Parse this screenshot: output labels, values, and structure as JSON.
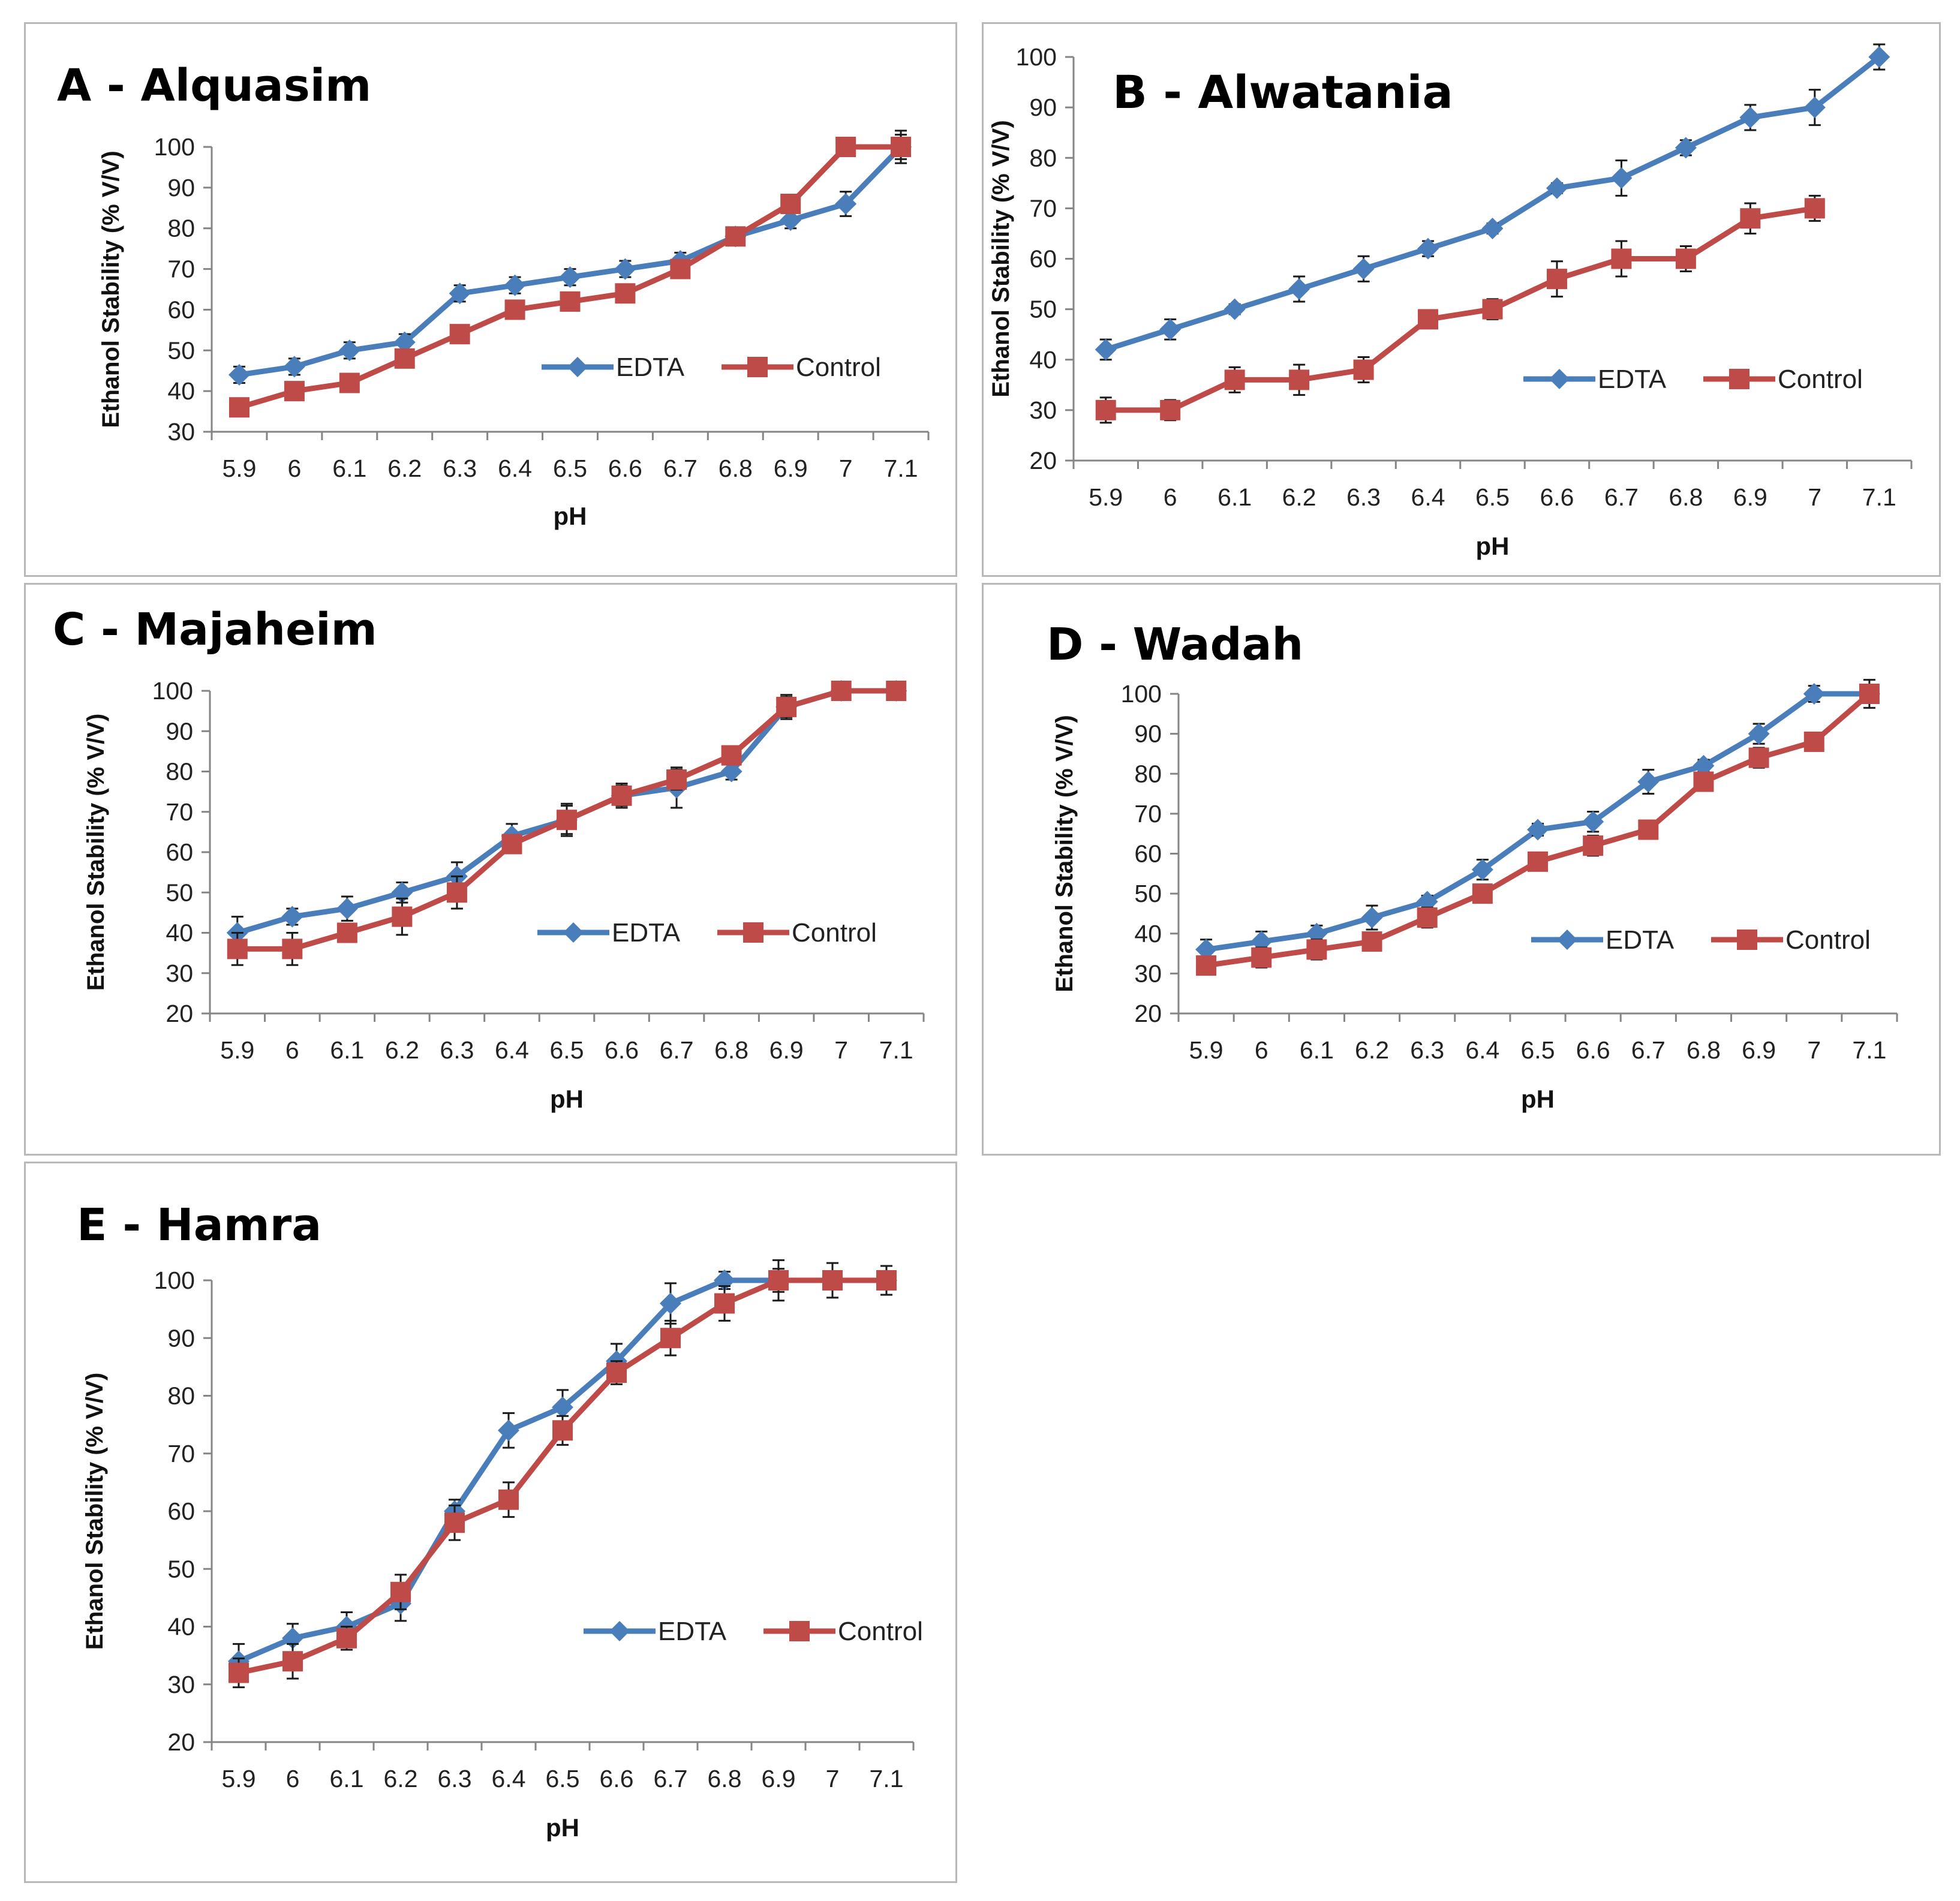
{
  "colors": {
    "edta": "#4a7ebb",
    "control": "#be4b48",
    "axis": "#858585",
    "error": "#1a1a1a"
  },
  "chart_data": [
    {
      "type": "line",
      "title": "A - Alquasim",
      "xlabel": "pH",
      "ylabel": "Ethanol Stability (% V/V)",
      "categories": [
        "5.9",
        "6",
        "6.1",
        "6.2",
        "6.3",
        "6.4",
        "6.5",
        "6.6",
        "6.7",
        "6.8",
        "6.9",
        "7",
        "7.1"
      ],
      "ylim": [
        30,
        100
      ],
      "yticks": [
        30,
        40,
        50,
        60,
        70,
        80,
        90,
        100
      ],
      "legend": "center-right",
      "series": [
        {
          "name": "EDTA",
          "values": [
            44,
            46,
            50,
            52,
            64,
            66,
            68,
            70,
            72,
            78,
            82,
            86,
            100
          ],
          "errors": [
            2,
            2,
            2,
            2,
            2,
            2,
            2,
            2,
            2,
            2,
            2,
            3,
            3
          ]
        },
        {
          "name": "Control",
          "values": [
            36,
            40,
            42,
            48,
            54,
            60,
            62,
            64,
            70,
            78,
            86,
            100,
            100
          ],
          "errors": [
            2,
            2,
            2,
            2,
            2,
            2,
            2,
            2,
            2,
            2,
            2,
            2,
            4
          ]
        }
      ]
    },
    {
      "type": "line",
      "title": "B - Alwatania",
      "xlabel": "pH",
      "ylabel": "Ethanol Stability (% V/V)",
      "categories": [
        "5.9",
        "6",
        "6.1",
        "6.2",
        "6.3",
        "6.4",
        "6.5",
        "6.6",
        "6.7",
        "6.8",
        "6.9",
        "7",
        "7.1"
      ],
      "ylim": [
        20,
        100
      ],
      "yticks": [
        20,
        30,
        40,
        50,
        60,
        70,
        80,
        90,
        100
      ],
      "legend": "center-right",
      "series": [
        {
          "name": "EDTA",
          "values": [
            42,
            46,
            50,
            54,
            58,
            62,
            66,
            74,
            76,
            82,
            88,
            90,
            100
          ],
          "errors": [
            2,
            2,
            1,
            2.5,
            2.5,
            1.5,
            1,
            1,
            3.5,
            1.5,
            2.5,
            3.5,
            2.5
          ]
        },
        {
          "name": "Control",
          "values": [
            30,
            30,
            36,
            36,
            38,
            48,
            50,
            56,
            60,
            60,
            68,
            70,
            null
          ],
          "errors": [
            2.5,
            2,
            2.5,
            3,
            2.5,
            1,
            2,
            3.5,
            3.5,
            2.5,
            3,
            2.5,
            0
          ]
        }
      ]
    },
    {
      "type": "line",
      "title": "C - Majaheim",
      "xlabel": "pH",
      "ylabel": "Ethanol Stability (% V/V)",
      "categories": [
        "5.9",
        "6",
        "6.1",
        "6.2",
        "6.3",
        "6.4",
        "6.5",
        "6.6",
        "6.7",
        "6.8",
        "6.9",
        "7",
        "7.1"
      ],
      "ylim": [
        20,
        100
      ],
      "yticks": [
        20,
        30,
        40,
        50,
        60,
        70,
        80,
        90,
        100
      ],
      "legend": "center-right",
      "series": [
        {
          "name": "EDTA",
          "values": [
            40,
            44,
            46,
            50,
            54,
            64,
            68,
            74,
            76,
            80,
            96,
            100,
            100
          ],
          "errors": [
            4,
            2,
            3,
            2.5,
            3.5,
            3,
            4,
            3,
            5,
            2,
            3,
            1.5,
            1
          ]
        },
        {
          "name": "Control",
          "values": [
            36,
            36,
            40,
            44,
            50,
            62,
            68,
            74,
            78,
            84,
            96,
            100,
            100
          ],
          "errors": [
            4,
            4,
            2,
            4.5,
            4,
            2,
            3.5,
            2.5,
            2.5,
            2,
            2.5,
            1.5,
            1.5
          ]
        }
      ]
    },
    {
      "type": "line",
      "title": "D - Wadah",
      "xlabel": "pH",
      "ylabel": "Ethanol Stability (% V/V)",
      "categories": [
        "5.9",
        "6",
        "6.1",
        "6.2",
        "6.3",
        "6.4",
        "6.5",
        "6.6",
        "6.7",
        "6.8",
        "6.9",
        "7",
        "7.1"
      ],
      "ylim": [
        20,
        100
      ],
      "yticks": [
        20,
        30,
        40,
        50,
        60,
        70,
        80,
        90,
        100
      ],
      "legend": "center-right",
      "series": [
        {
          "name": "EDTA",
          "values": [
            36,
            38,
            40,
            44,
            48,
            56,
            66,
            68,
            78,
            82,
            90,
            100,
            100
          ],
          "errors": [
            2.5,
            2.5,
            2,
            3,
            1.5,
            2.5,
            1.5,
            2.5,
            3,
            1.5,
            2.5,
            2,
            0
          ]
        },
        {
          "name": "Control",
          "values": [
            32,
            34,
            36,
            38,
            44,
            50,
            58,
            62,
            66,
            78,
            84,
            88,
            100
          ],
          "errors": [
            2,
            2.5,
            2.5,
            2,
            2.5,
            2,
            1.5,
            2.5,
            1.5,
            2,
            2.5,
            2,
            3.5
          ]
        }
      ]
    },
    {
      "type": "line",
      "title": "E - Hamra",
      "xlabel": "pH",
      "ylabel": "Ethanol Stability (% V/V)",
      "categories": [
        "5.9",
        "6",
        "6.1",
        "6.2",
        "6.3",
        "6.4",
        "6.5",
        "6.6",
        "6.7",
        "6.8",
        "6.9",
        "7",
        "7.1"
      ],
      "ylim": [
        20,
        100
      ],
      "yticks": [
        20,
        30,
        40,
        50,
        60,
        70,
        80,
        90,
        100
      ],
      "legend": "center-right",
      "series": [
        {
          "name": "EDTA",
          "values": [
            34,
            38,
            40,
            44,
            60,
            74,
            78,
            86,
            96,
            100,
            100,
            100,
            100
          ],
          "errors": [
            3,
            2.5,
            2.5,
            3,
            2,
            3,
            3,
            3,
            3.5,
            1.5,
            2,
            1.5,
            1
          ]
        },
        {
          "name": "Control",
          "values": [
            32,
            34,
            38,
            46,
            58,
            62,
            74,
            84,
            90,
            96,
            100,
            100,
            100
          ],
          "errors": [
            2.5,
            3,
            2,
            3,
            3,
            3,
            2.5,
            2,
            3,
            3,
            3.5,
            3,
            2.5
          ]
        }
      ]
    }
  ]
}
